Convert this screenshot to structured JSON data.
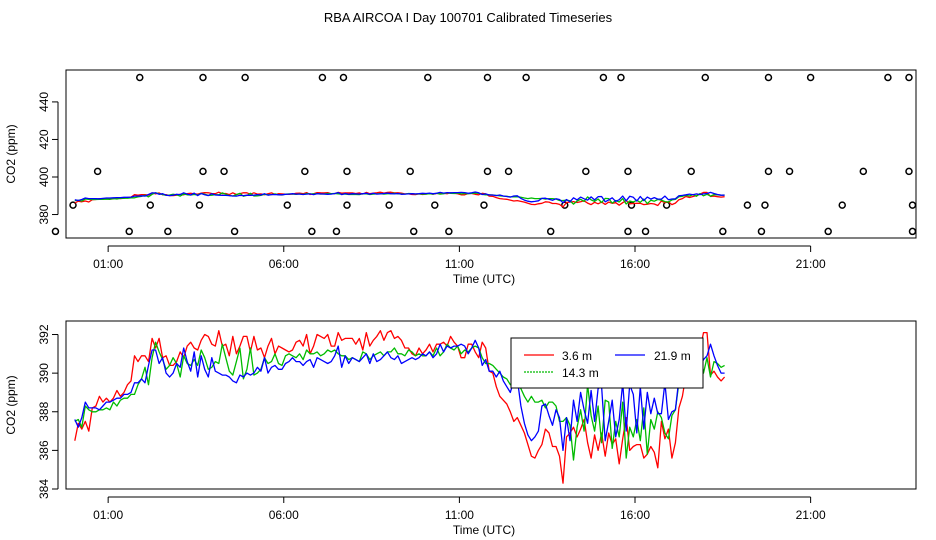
{
  "title": "RBA AIRCOA I  Day 100701  Calibrated Timeseries",
  "chart_data": [
    {
      "type": "line",
      "panel": "top",
      "xlabel": "Time (UTC)",
      "ylabel": "CO2 (ppm)",
      "xlim": [
        -0.2,
        24.0
      ],
      "ylim": [
        367.5,
        457.0
      ],
      "xticks": [
        1,
        6,
        11,
        16,
        21
      ],
      "xtick_labels": [
        "01:00",
        "06:00",
        "11:00",
        "16:00",
        "21:00"
      ],
      "yticks": [
        380,
        400,
        420,
        440
      ],
      "ytick_labels": [
        "380",
        "400",
        "420",
        "440"
      ],
      "series": [
        {
          "name": "3.6 m",
          "color": "#ff0000",
          "offset": -0.3
        },
        {
          "name": "14.3 m",
          "color": "#00bb00",
          "offset": 0.0
        },
        {
          "name": "21.9 m",
          "color": "#0000ff",
          "offset": 0.3
        }
      ],
      "calibration_points": {
        "marker": "open-circle",
        "points": [
          [
            1.9,
            453
          ],
          [
            3.7,
            453
          ],
          [
            4.9,
            453
          ],
          [
            7.1,
            453
          ],
          [
            7.7,
            453
          ],
          [
            10.1,
            453
          ],
          [
            11.8,
            453
          ],
          [
            12.9,
            453
          ],
          [
            15.1,
            453
          ],
          [
            15.6,
            453
          ],
          [
            18.0,
            453
          ],
          [
            19.8,
            453
          ],
          [
            21.0,
            453
          ],
          [
            23.2,
            453
          ],
          [
            23.8,
            453
          ],
          [
            0.7,
            403
          ],
          [
            3.7,
            403
          ],
          [
            4.3,
            403
          ],
          [
            6.6,
            403
          ],
          [
            7.8,
            403
          ],
          [
            9.6,
            403
          ],
          [
            11.8,
            403
          ],
          [
            12.4,
            403
          ],
          [
            14.6,
            403
          ],
          [
            15.8,
            403
          ],
          [
            17.6,
            403
          ],
          [
            19.8,
            403
          ],
          [
            20.4,
            403
          ],
          [
            22.5,
            403
          ],
          [
            23.8,
            403
          ],
          [
            0.0,
            385
          ],
          [
            2.2,
            385
          ],
          [
            3.6,
            385
          ],
          [
            6.1,
            385
          ],
          [
            7.8,
            385
          ],
          [
            9.0,
            385
          ],
          [
            10.3,
            385
          ],
          [
            11.7,
            385
          ],
          [
            14.0,
            385
          ],
          [
            15.9,
            385
          ],
          [
            16.9,
            385
          ],
          [
            19.2,
            385
          ],
          [
            19.7,
            385
          ],
          [
            21.9,
            385
          ],
          [
            23.9,
            385
          ],
          [
            -0.5,
            371
          ],
          [
            1.6,
            371
          ],
          [
            2.7,
            371
          ],
          [
            4.6,
            371
          ],
          [
            6.8,
            371
          ],
          [
            7.5,
            371
          ],
          [
            9.7,
            371
          ],
          [
            10.7,
            371
          ],
          [
            13.6,
            371
          ],
          [
            15.8,
            371
          ],
          [
            16.3,
            371
          ],
          [
            18.5,
            371
          ],
          [
            19.6,
            371
          ],
          [
            21.5,
            371
          ],
          [
            23.9,
            371
          ]
        ]
      }
    },
    {
      "type": "line",
      "panel": "bottom",
      "xlabel": "Time (UTC)",
      "ylabel": "CO2 (ppm)",
      "xlim": [
        -0.2,
        24.0
      ],
      "ylim": [
        384.0,
        392.7
      ],
      "xticks": [
        1,
        6,
        11,
        16,
        21
      ],
      "xtick_labels": [
        "01:00",
        "06:00",
        "11:00",
        "16:00",
        "21:00"
      ],
      "yticks": [
        384,
        386,
        388,
        390,
        392
      ],
      "ytick_labels": [
        "384",
        "386",
        "388",
        "390",
        "392"
      ],
      "legend_position": "top-center",
      "series": [
        {
          "name": "3.6 m",
          "color": "#ff0000",
          "x0": 0.05,
          "dx": 0.1,
          "values": [
            386.5,
            387.4,
            387.1,
            387.5,
            387.0,
            388.2,
            388.3,
            388.8,
            388.5,
            388.7,
            388.5,
            388.7,
            389.1,
            388.8,
            389.0,
            389.4,
            389.6,
            390.9,
            390.6,
            390.9,
            390.9,
            390.6,
            391.8,
            391.3,
            391.8,
            390.8,
            390.9,
            390.4,
            390.4,
            390.6,
            391.1,
            390.8,
            391.4,
            391.6,
            391.3,
            391.2,
            391.7,
            392.0,
            391.9,
            391.5,
            391.4,
            392.2,
            391.4,
            391.5,
            390.9,
            391.9,
            391.0,
            391.4,
            391.9,
            391.9,
            391.1,
            391.9,
            391.2,
            391.3,
            390.8,
            391.4,
            391.8,
            391.0,
            391.4,
            391.3,
            391.2,
            391.1,
            391.2,
            391.6,
            391.7,
            391.4,
            392.0,
            391.0,
            391.4,
            392.0,
            391.9,
            391.8,
            392.0,
            391.4,
            391.4,
            392.1,
            391.7,
            391.8,
            391.8,
            391.8,
            391.5,
            391.8,
            391.2,
            392.1,
            391.4,
            391.7,
            391.9,
            392.2,
            391.7,
            392.1,
            392.2,
            391.8,
            391.9,
            391.7,
            391.3,
            391.3,
            391.0,
            390.9,
            391.3,
            391.0,
            391.2,
            391.5,
            391.1,
            391.5,
            391.5,
            391.6,
            391.4,
            391.9,
            391.6,
            391.4,
            390.8,
            390.8,
            391.5,
            391.5,
            391.1,
            390.8,
            391.6,
            391.3,
            390.1,
            390.0,
            389.3,
            388.8,
            388.6,
            388.4,
            388.0,
            387.5,
            387.7,
            387.3,
            386.9,
            386.3,
            385.7,
            385.6,
            386.0,
            386.3,
            387.1,
            386.9,
            386.2,
            386.2,
            385.7,
            384.3,
            386.7,
            386.9,
            387.2,
            386.7,
            387.1,
            387.6,
            386.4,
            385.6,
            386.8,
            386.0,
            386.9,
            385.7,
            386.9,
            386.3,
            386.6,
            385.3,
            386.6,
            387.7,
            386.0,
            386.2,
            386.3,
            386.3,
            385.6,
            385.8,
            386.2,
            385.9,
            385.1,
            387.5,
            386.6,
            387.1,
            385.6,
            386.4,
            388.2,
            388.8,
            389.9,
            389.4,
            389.9,
            390.4,
            391.2,
            392.1,
            392.1,
            389.9,
            390.1,
            389.8,
            389.6,
            389.8
          ]
        },
        {
          "name": "14.3 m",
          "color": "#00bb00",
          "x0": 0.05,
          "dx": 0.1,
          "values": [
            387.5,
            387.6,
            387.2,
            388.3,
            388.1,
            388.0,
            388.0,
            388.1,
            388.1,
            388.2,
            388.1,
            388.5,
            388.3,
            388.6,
            388.7,
            388.7,
            388.9,
            388.9,
            389.4,
            389.7,
            390.3,
            389.4,
            390.8,
            391.6,
            391.1,
            390.7,
            390.2,
            390.4,
            390.8,
            390.5,
            389.8,
            390.9,
            390.5,
            390.4,
            390.7,
            390.4,
            391.2,
            390.8,
            390.2,
            390.3,
            390.6,
            390.5,
            391.5,
            390.8,
            390.1,
            389.9,
            390.6,
            391.3,
            389.7,
            390.2,
            391.3,
            389.9,
            390.0,
            390.2,
            390.8,
            390.5,
            390.6,
            391.0,
            390.5,
            390.4,
            390.9,
            391.0,
            390.9,
            390.8,
            391.0,
            390.7,
            391.2,
            391.0,
            391.0,
            391.1,
            390.9,
            391.0,
            391.2,
            391.1,
            391.2,
            391.0,
            390.9,
            390.9,
            390.7,
            390.8,
            390.7,
            390.6,
            391.1,
            391.0,
            390.7,
            390.9,
            391.0,
            391.1,
            390.9,
            391.1,
            391.1,
            391.3,
            391.0,
            391.0,
            390.9,
            391.2,
            391.1,
            390.9,
            391.0,
            390.9,
            390.9,
            391.1,
            390.9,
            391.3,
            390.9,
            391.1,
            391.5,
            391.3,
            391.2,
            391.4,
            391.0,
            391.2,
            391.1,
            391.3,
            391.4,
            391.3,
            390.8,
            390.5,
            390.5,
            390.4,
            390.2,
            390.0,
            389.8,
            389.7,
            389.4,
            389.4,
            389.5,
            389.2,
            388.8,
            388.5,
            388.8,
            388.5,
            388.5,
            388.6,
            388.2,
            388.5,
            388.5,
            388.3,
            387.5,
            387.5,
            387.7,
            387.3,
            385.5,
            387.2,
            388.1,
            387.0,
            389.4,
            387.8,
            387.0,
            388.3,
            386.4,
            388.6,
            388.5,
            386.1,
            387.5,
            386.7,
            388.5,
            385.6,
            387.2,
            386.7,
            387.6,
            386.5,
            388.2,
            385.8,
            387.6,
            387.1,
            388.0,
            387.7,
            386.9,
            386.6,
            387.8,
            388.1,
            389.5,
            389.7,
            390.2,
            389.9,
            390.7,
            389.7,
            391.2,
            390.0,
            390.8,
            389.8,
            390.6,
            390.5,
            390.3,
            390.4
          ]
        },
        {
          "name": "21.9 m",
          "color": "#0000ff",
          "x0": 0.05,
          "dx": 0.1,
          "values": [
            387.6,
            387.2,
            387.7,
            388.5,
            388.2,
            388.2,
            388.2,
            388.1,
            388.3,
            388.5,
            388.5,
            388.6,
            388.7,
            388.7,
            388.9,
            388.9,
            389.0,
            389.5,
            389.5,
            389.7,
            389.5,
            390.4,
            391.2,
            391.2,
            390.5,
            390.8,
            390.0,
            389.8,
            390.0,
            390.5,
            390.3,
            391.3,
            390.6,
            390.1,
            391.1,
            389.8,
            390.9,
            390.2,
            389.8,
            390.8,
            390.1,
            390.0,
            389.9,
            389.9,
            389.8,
            389.6,
            389.5,
            389.9,
            389.8,
            390.0,
            389.9,
            390.0,
            390.3,
            390.1,
            390.8,
            390.0,
            390.3,
            390.4,
            390.2,
            390.2,
            390.5,
            390.6,
            390.8,
            390.6,
            390.6,
            390.4,
            390.6,
            390.7,
            390.3,
            390.8,
            390.7,
            390.6,
            390.5,
            390.6,
            390.9,
            391.4,
            390.3,
            390.9,
            390.5,
            390.8,
            390.7,
            390.6,
            390.8,
            391.0,
            390.5,
            391.0,
            390.6,
            390.7,
            390.9,
            391.1,
            390.8,
            390.7,
            390.9,
            390.5,
            390.6,
            390.7,
            390.8,
            390.7,
            390.8,
            391.0,
            390.9,
            391.1,
            390.8,
            391.0,
            391.5,
            391.1,
            391.4,
            391.3,
            391.4,
            391.4,
            391.5,
            391.4,
            391.0,
            391.3,
            391.7,
            391.3,
            390.4,
            390.7,
            390.1,
            390.1,
            389.8,
            390.1,
            389.6,
            389.3,
            389.0,
            389.6,
            389.7,
            388.3,
            387.4,
            386.8,
            386.5,
            386.7,
            387.0,
            388.3,
            388.4,
            387.8,
            387.3,
            388.1,
            387.7,
            386.0,
            387.7,
            386.5,
            388.6,
            387.5,
            389.0,
            388.1,
            387.4,
            389.1,
            387.5,
            389.2,
            389.3,
            386.5,
            387.5,
            388.6,
            386.7,
            387.6,
            389.5,
            387.0,
            389.4,
            388.9,
            386.9,
            389.3,
            387.1,
            389.0,
            387.9,
            388.7,
            387.9,
            387.9,
            389.5,
            387.6,
            388.0,
            388.1,
            389.7,
            389.9,
            390.2,
            390.6,
            390.2,
            390.7,
            390.3,
            390.7,
            390.9,
            391.5,
            390.9,
            390.4,
            390.0,
            390.0
          ]
        }
      ]
    }
  ]
}
